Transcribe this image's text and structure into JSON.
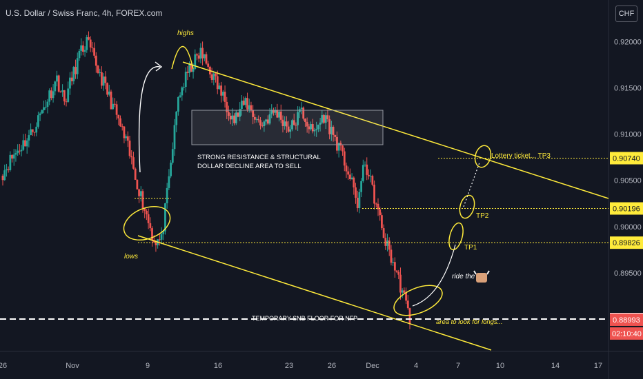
{
  "header": {
    "title": "U.S. Dollar / Swiss Franc, 4h, FOREX.com",
    "currency": "CHF",
    "currency_icon": "gear-icon"
  },
  "colors": {
    "background": "#131722",
    "up_candle": "#26a69a",
    "down_candle": "#ef5350",
    "annotation": "#ffeb3b",
    "highlight_box": "#ffeb3b",
    "current_price": "#ef5350",
    "axis_text": "#b2b5be"
  },
  "chart_data": {
    "type": "candlestick",
    "symbol": "USDCHF",
    "timeframe": "4h",
    "x_ticks": [
      "26",
      "Nov",
      "9",
      "16",
      "23",
      "26",
      "Dec",
      "4",
      "7",
      "10",
      "14",
      "17"
    ],
    "y_ticks": [
      "0.92000",
      "0.91500",
      "0.91000",
      "0.90500",
      "0.90000",
      "0.89500"
    ],
    "ylim": [
      0.8865,
      0.9245
    ],
    "price_labels": [
      {
        "value": 0.9074,
        "text": "0.90740",
        "style": "yellow"
      },
      {
        "value": 0.90196,
        "text": "0.90196",
        "style": "yellow"
      },
      {
        "value": 0.89826,
        "text": "0.89826",
        "style": "yellow"
      },
      {
        "value": 0.89,
        "text": "0.89000",
        "style": "white"
      },
      {
        "value": 0.88993,
        "text": "0.88993",
        "style": "red"
      }
    ],
    "countdown": "02:10:40",
    "price_path": [
      [
        0.9055,
        0
      ],
      [
        0.9075,
        6
      ],
      [
        0.9085,
        4
      ],
      [
        0.91,
        6
      ],
      [
        0.9125,
        6
      ],
      [
        0.916,
        8
      ],
      [
        0.9135,
        4
      ],
      [
        0.9185,
        8
      ],
      [
        0.92,
        4
      ],
      [
        0.918,
        4
      ],
      [
        0.915,
        6
      ],
      [
        0.912,
        6
      ],
      [
        0.9085,
        6
      ],
      [
        0.904,
        6
      ],
      [
        0.8985,
        8
      ],
      [
        0.8985,
        4
      ],
      [
        0.905,
        4
      ],
      [
        0.914,
        5
      ],
      [
        0.917,
        6
      ],
      [
        0.9188,
        6
      ],
      [
        0.9165,
        6
      ],
      [
        0.914,
        6
      ],
      [
        0.9115,
        6
      ],
      [
        0.9135,
        6
      ],
      [
        0.911,
        8
      ],
      [
        0.9125,
        8
      ],
      [
        0.9105,
        8
      ],
      [
        0.9125,
        6
      ],
      [
        0.91,
        6
      ],
      [
        0.912,
        6
      ],
      [
        0.9095,
        6
      ],
      [
        0.9065,
        6
      ],
      [
        0.9025,
        6
      ],
      [
        0.907,
        4
      ],
      [
        0.904,
        4
      ],
      [
        0.899,
        6
      ],
      [
        0.8955,
        6
      ],
      [
        0.893,
        4
      ],
      [
        0.89,
        4
      ]
    ],
    "annotations": {
      "highs": "highs",
      "lows": "lows",
      "resistance": [
        "STRONG RESISTANCE & STRUCTURAL",
        "DOLLAR DECLINE AREA TO SELL"
      ],
      "floor": "TEMPORARY SNB FLOOR FOR NFP",
      "tp1": "TP1",
      "tp2": "TP2",
      "tp3": "Lottery ticket... TP3",
      "ride": "ride the",
      "ride_icon": "bull-icon",
      "area": "area to look for longs..."
    }
  }
}
